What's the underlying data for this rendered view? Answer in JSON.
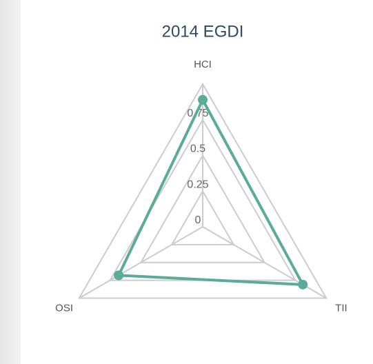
{
  "chart_data": {
    "type": "radar",
    "title": "2014 EGDI",
    "categories": [
      "HCI",
      "TII",
      "OSI"
    ],
    "series": [
      {
        "name": "2014 EGDI",
        "color": "#5aab97",
        "values": [
          0.89,
          0.81,
          0.68
        ]
      }
    ],
    "ylim": [
      0,
      1
    ],
    "yticks": [
      0,
      0.25,
      0.5,
      0.75
    ],
    "grid": true
  }
}
